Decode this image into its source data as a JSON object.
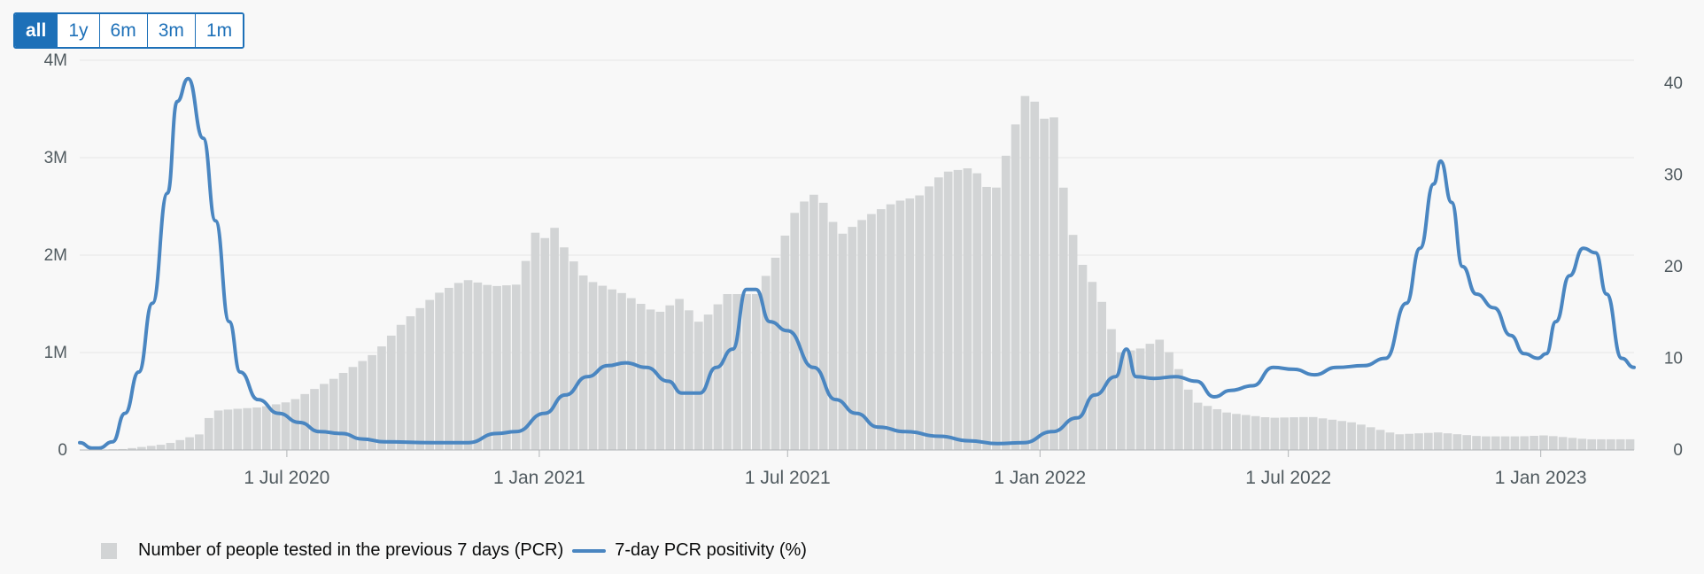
{
  "range_tabs": [
    {
      "label": "all",
      "active": true
    },
    {
      "label": "1y",
      "active": false
    },
    {
      "label": "6m",
      "active": false
    },
    {
      "label": "3m",
      "active": false
    },
    {
      "label": "1m",
      "active": false
    }
  ],
  "legend": {
    "tested_label": "Number of people tested in the previous 7 days (PCR)",
    "positivity_label": "7-day PCR positivity (%)"
  },
  "colors": {
    "bars": "#d2d4d5",
    "line": "#4a86c1",
    "grid": "#e6e6e6",
    "axis_text": "#505a5f",
    "tab_active_bg": "#1d70b8"
  },
  "chart_data": {
    "type": "bar+line",
    "x_domain": [
      "2020-02-01",
      "2023-03-10"
    ],
    "x_ticks": [
      {
        "date": "2020-07-01",
        "label": "1 Jul 2020"
      },
      {
        "date": "2021-01-01",
        "label": "1 Jan 2021"
      },
      {
        "date": "2021-07-01",
        "label": "1 Jul 2021"
      },
      {
        "date": "2022-01-01",
        "label": "1 Jan 2022"
      },
      {
        "date": "2022-07-01",
        "label": "1 Jul 2022"
      },
      {
        "date": "2023-01-01",
        "label": "1 Jan 2023"
      }
    ],
    "y_left": {
      "range": [
        0,
        4000000
      ],
      "ticks": [
        {
          "value": 0,
          "label": "0"
        },
        {
          "value": 1000000,
          "label": "1M"
        },
        {
          "value": 2000000,
          "label": "2M"
        },
        {
          "value": 3000000,
          "label": "3M"
        },
        {
          "value": 4000000,
          "label": "4M"
        }
      ]
    },
    "y_right": {
      "range": [
        0,
        42.5
      ],
      "ticks": [
        {
          "value": 0,
          "label": "0"
        },
        {
          "value": 10,
          "label": "10"
        },
        {
          "value": 20,
          "label": "20"
        },
        {
          "value": 30,
          "label": "30"
        },
        {
          "value": 40,
          "label": "40"
        }
      ]
    },
    "grid": true,
    "legend_position": "bottom-left",
    "series": [
      {
        "name": "Number of people tested in the previous 7 days (PCR)",
        "type": "bar",
        "axis": "left",
        "points": [
          [
            "2020-02-01",
            0
          ],
          [
            "2020-03-01",
            10000
          ],
          [
            "2020-04-01",
            60000
          ],
          [
            "2020-04-25",
            160000
          ],
          [
            "2020-05-05",
            400000
          ],
          [
            "2020-05-20",
            420000
          ],
          [
            "2020-06-10",
            440000
          ],
          [
            "2020-07-01",
            500000
          ],
          [
            "2020-08-01",
            730000
          ],
          [
            "2020-09-01",
            1000000
          ],
          [
            "2020-09-20",
            1300000
          ],
          [
            "2020-10-15",
            1600000
          ],
          [
            "2020-11-05",
            1750000
          ],
          [
            "2020-11-25",
            1680000
          ],
          [
            "2020-12-15",
            1700000
          ],
          [
            "2020-12-25",
            2300000
          ],
          [
            "2020-12-30",
            1950000
          ],
          [
            "2021-01-05",
            2400000
          ],
          [
            "2021-01-15",
            2100000
          ],
          [
            "2021-02-01",
            1750000
          ],
          [
            "2021-03-01",
            1600000
          ],
          [
            "2021-03-25",
            1400000
          ],
          [
            "2021-04-10",
            1550000
          ],
          [
            "2021-04-25",
            1300000
          ],
          [
            "2021-05-15",
            1600000
          ],
          [
            "2021-06-05",
            1600000
          ],
          [
            "2021-06-20",
            2000000
          ],
          [
            "2021-07-05",
            2500000
          ],
          [
            "2021-07-20",
            2650000
          ],
          [
            "2021-08-05",
            2200000
          ],
          [
            "2021-08-25",
            2400000
          ],
          [
            "2021-09-15",
            2550000
          ],
          [
            "2021-10-01",
            2600000
          ],
          [
            "2021-10-20",
            2850000
          ],
          [
            "2021-11-10",
            2900000
          ],
          [
            "2021-11-25",
            2600000
          ],
          [
            "2021-12-10",
            3300000
          ],
          [
            "2021-12-22",
            3800000
          ],
          [
            "2021-12-30",
            3200000
          ],
          [
            "2022-01-05",
            3800000
          ],
          [
            "2022-01-12",
            2900000
          ],
          [
            "2022-01-25",
            2000000
          ],
          [
            "2022-02-10",
            1600000
          ],
          [
            "2022-02-25",
            1000000
          ],
          [
            "2022-03-15",
            1050000
          ],
          [
            "2022-03-25",
            1150000
          ],
          [
            "2022-04-05",
            950000
          ],
          [
            "2022-04-20",
            500000
          ],
          [
            "2022-05-15",
            380000
          ],
          [
            "2022-06-15",
            330000
          ],
          [
            "2022-07-15",
            340000
          ],
          [
            "2022-08-15",
            280000
          ],
          [
            "2022-09-15",
            160000
          ],
          [
            "2022-10-15",
            180000
          ],
          [
            "2022-11-15",
            140000
          ],
          [
            "2022-12-15",
            140000
          ],
          [
            "2023-01-01",
            150000
          ],
          [
            "2023-02-01",
            110000
          ],
          [
            "2023-03-10",
            110000
          ]
        ]
      },
      {
        "name": "7-day PCR positivity (%)",
        "type": "line",
        "axis": "right",
        "points": [
          [
            "2020-02-01",
            0.8
          ],
          [
            "2020-02-10",
            0.2
          ],
          [
            "2020-02-15",
            0.2
          ],
          [
            "2020-02-25",
            0.9
          ],
          [
            "2020-03-05",
            4.0
          ],
          [
            "2020-03-15",
            8.5
          ],
          [
            "2020-03-25",
            16.0
          ],
          [
            "2020-04-05",
            28.0
          ],
          [
            "2020-04-12",
            38.0
          ],
          [
            "2020-04-20",
            40.5
          ],
          [
            "2020-05-01",
            34.0
          ],
          [
            "2020-05-10",
            25.0
          ],
          [
            "2020-05-20",
            14.0
          ],
          [
            "2020-05-28",
            8.5
          ],
          [
            "2020-06-10",
            5.5
          ],
          [
            "2020-06-25",
            4.0
          ],
          [
            "2020-07-10",
            3.0
          ],
          [
            "2020-07-25",
            2.0
          ],
          [
            "2020-08-10",
            1.8
          ],
          [
            "2020-08-25",
            1.2
          ],
          [
            "2020-09-10",
            0.9
          ],
          [
            "2020-10-15",
            0.8
          ],
          [
            "2020-11-10",
            0.8
          ],
          [
            "2020-12-01",
            1.8
          ],
          [
            "2020-12-15",
            2.0
          ],
          [
            "2021-01-05",
            4.0
          ],
          [
            "2021-01-20",
            6.0
          ],
          [
            "2021-02-05",
            8.0
          ],
          [
            "2021-02-20",
            9.2
          ],
          [
            "2021-03-05",
            9.5
          ],
          [
            "2021-03-20",
            9.0
          ],
          [
            "2021-04-05",
            7.5
          ],
          [
            "2021-04-15",
            6.2
          ],
          [
            "2021-04-28",
            6.2
          ],
          [
            "2021-05-10",
            9.0
          ],
          [
            "2021-05-22",
            11.0
          ],
          [
            "2021-06-01",
            17.5
          ],
          [
            "2021-06-08",
            17.5
          ],
          [
            "2021-06-18",
            14.0
          ],
          [
            "2021-07-01",
            13.0
          ],
          [
            "2021-07-20",
            9.0
          ],
          [
            "2021-08-05",
            5.5
          ],
          [
            "2021-08-20",
            4.0
          ],
          [
            "2021-09-05",
            2.5
          ],
          [
            "2021-09-25",
            2.0
          ],
          [
            "2021-10-20",
            1.5
          ],
          [
            "2021-11-10",
            1.0
          ],
          [
            "2021-12-01",
            0.7
          ],
          [
            "2021-12-20",
            0.8
          ],
          [
            "2022-01-10",
            2.0
          ],
          [
            "2022-01-28",
            3.5
          ],
          [
            "2022-02-10",
            6.0
          ],
          [
            "2022-02-25",
            8.0
          ],
          [
            "2022-03-05",
            11.0
          ],
          [
            "2022-03-12",
            8.0
          ],
          [
            "2022-03-25",
            7.8
          ],
          [
            "2022-04-10",
            8.0
          ],
          [
            "2022-04-25",
            7.5
          ],
          [
            "2022-05-08",
            5.8
          ],
          [
            "2022-05-20",
            6.5
          ],
          [
            "2022-06-05",
            7.0
          ],
          [
            "2022-06-20",
            9.0
          ],
          [
            "2022-07-05",
            8.8
          ],
          [
            "2022-07-20",
            8.2
          ],
          [
            "2022-08-05",
            9.0
          ],
          [
            "2022-08-25",
            9.2
          ],
          [
            "2022-09-10",
            10.0
          ],
          [
            "2022-09-25",
            16.0
          ],
          [
            "2022-10-05",
            22.0
          ],
          [
            "2022-10-15",
            29.0
          ],
          [
            "2022-10-20",
            31.5
          ],
          [
            "2022-10-28",
            27.0
          ],
          [
            "2022-11-05",
            20.0
          ],
          [
            "2022-11-15",
            17.0
          ],
          [
            "2022-11-28",
            15.5
          ],
          [
            "2022-12-10",
            12.5
          ],
          [
            "2022-12-20",
            10.5
          ],
          [
            "2022-12-30",
            10.0
          ],
          [
            "2023-01-05",
            10.5
          ],
          [
            "2023-01-12",
            14.0
          ],
          [
            "2023-01-22",
            19.0
          ],
          [
            "2023-02-01",
            22.0
          ],
          [
            "2023-02-10",
            21.5
          ],
          [
            "2023-02-18",
            17.0
          ],
          [
            "2023-03-01",
            10.0
          ],
          [
            "2023-03-10",
            9.0
          ]
        ]
      }
    ]
  }
}
